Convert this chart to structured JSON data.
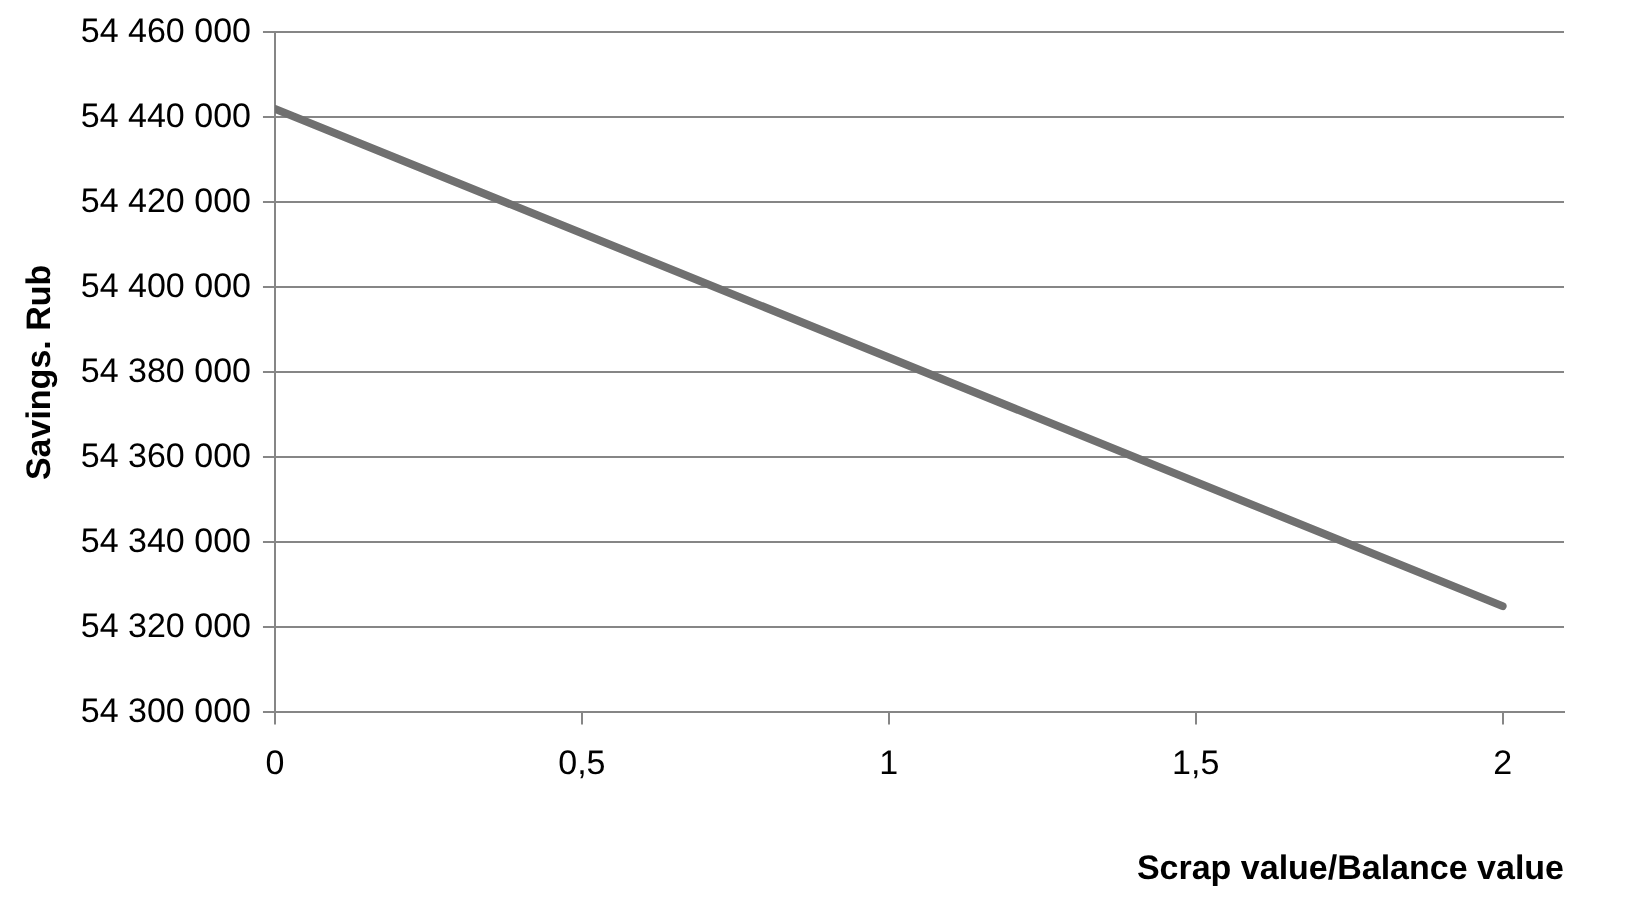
{
  "chart_data": {
    "type": "line",
    "xlabel": "Scrap value/Balance value",
    "ylabel": "Savings. Rub",
    "x": [
      0,
      2
    ],
    "series": [
      {
        "color": "#707070",
        "values": [
          54442000,
          54325000
        ]
      }
    ],
    "xlim": [
      0,
      2.1
    ],
    "xticks": [
      0,
      {
        "value": 0.5,
        "label": "0,5"
      },
      1,
      {
        "value": 1.5,
        "label": "1,5"
      },
      2
    ],
    "ylim": [
      54300000,
      54460000
    ],
    "yticks": [
      {
        "value": 54300000,
        "label": "54 300 000"
      },
      {
        "value": 54320000,
        "label": "54 320 000"
      },
      {
        "value": 54340000,
        "label": "54 340 000"
      },
      {
        "value": 54360000,
        "label": "54 360 000"
      },
      {
        "value": 54380000,
        "label": "54 380 000"
      },
      {
        "value": 54400000,
        "label": "54 400 000"
      },
      {
        "value": 54420000,
        "label": "54 420 000"
      },
      {
        "value": 54440000,
        "label": "54 440 000"
      },
      {
        "value": 54460000,
        "label": "54 460 000"
      }
    ],
    "grid": "y",
    "legend": false,
    "marker": "none",
    "line_style": "solid"
  }
}
